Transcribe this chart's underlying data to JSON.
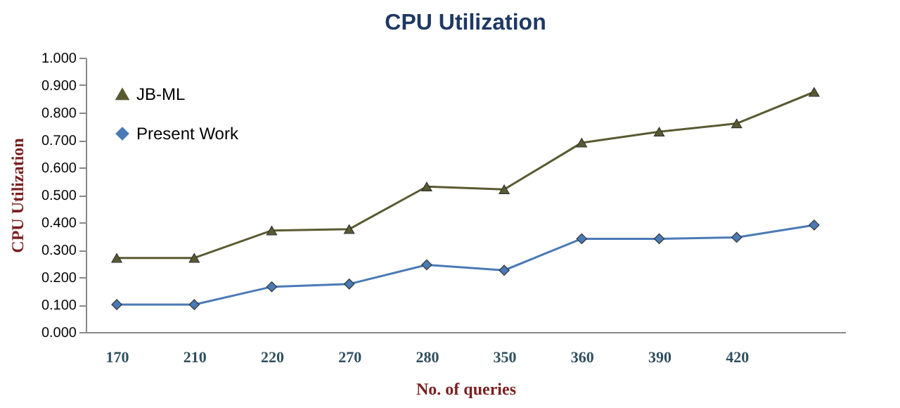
{
  "chart_data": {
    "type": "line",
    "title": "CPU Utilization",
    "xlabel": "No. of queries",
    "ylabel": "CPU Utilization",
    "categories": [
      "170",
      "210",
      "220",
      "270",
      "280",
      "350",
      "360",
      "390",
      "420",
      null
    ],
    "series": [
      {
        "name": "JB-ML",
        "color": "#5a5a32",
        "marker": "triangle",
        "values": [
          0.27,
          0.27,
          0.37,
          0.375,
          0.53,
          0.52,
          0.69,
          0.73,
          0.76,
          0.875
        ]
      },
      {
        "name": "Present Work",
        "color": "#4a7ab5",
        "marker": "diamond",
        "values": [
          0.1,
          0.1,
          0.165,
          0.175,
          0.245,
          0.225,
          0.34,
          0.34,
          0.345,
          0.39
        ]
      }
    ],
    "ylim": [
      0,
      1
    ],
    "yticks": [
      {
        "value": 0,
        "label": "0.000"
      },
      {
        "value": 0.1,
        "label": "0.100"
      },
      {
        "value": 0.2,
        "label": "0.200"
      },
      {
        "value": 0.3,
        "label": "0.300"
      },
      {
        "value": 0.4,
        "label": "0.400"
      },
      {
        "value": 0.5,
        "label": "0.500"
      },
      {
        "value": 0.6,
        "label": "0.600"
      },
      {
        "value": 0.7,
        "label": "0.700"
      },
      {
        "value": 0.8,
        "label": "0.800"
      },
      {
        "value": 0.9,
        "label": "0.900"
      },
      {
        "value": 1,
        "label": "1.000"
      }
    ],
    "grid": false,
    "legend": "top left",
    "line_style": "solid"
  }
}
